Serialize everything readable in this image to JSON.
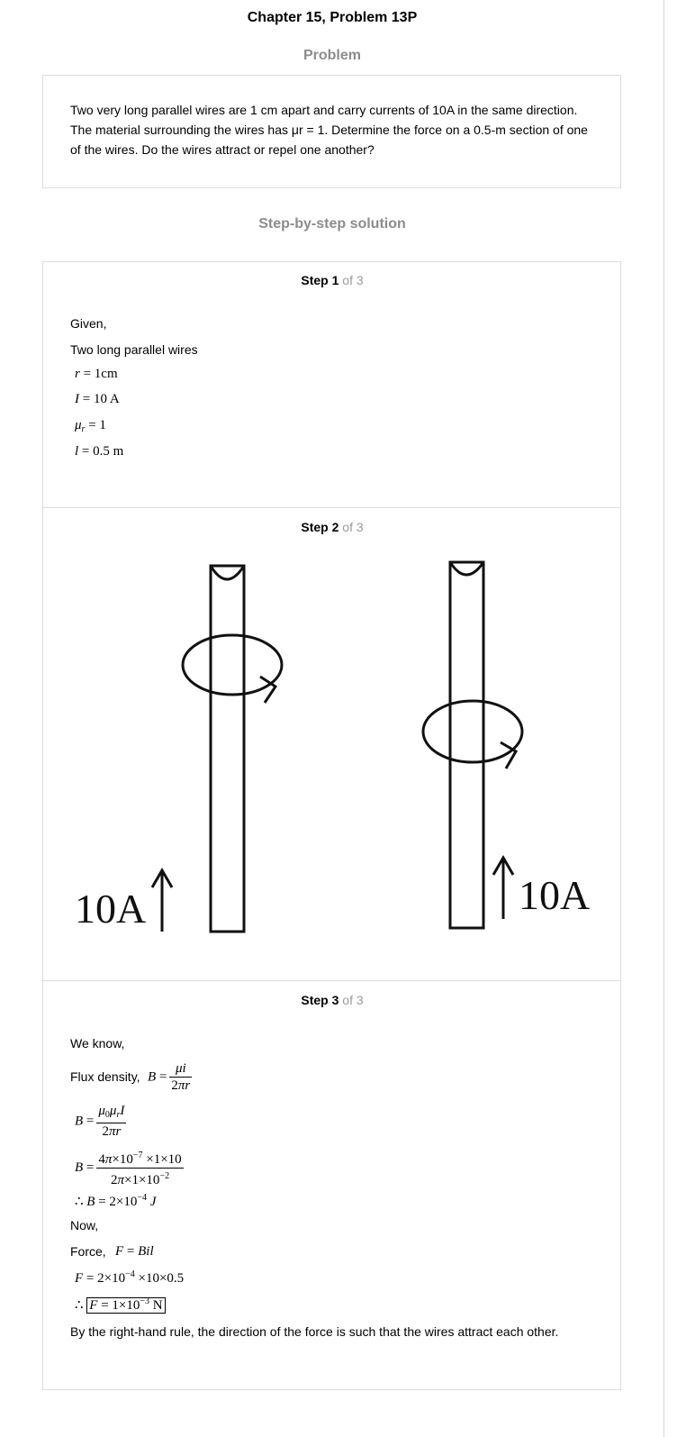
{
  "title": "Chapter 15, Problem 13P",
  "problem": {
    "heading": "Problem",
    "text": "Two very long parallel wires are 1 cm apart and carry currents of 10A in the same direction. The material surrounding the wires has μr = 1. Determine the force on a 0.5-m section of one of the wires. Do the wires attract or repel one another?"
  },
  "solution": {
    "heading": "Step-by-step solution",
    "step_word": "Step",
    "of_total": "of 3",
    "steps": [
      {
        "number": "1",
        "given": "Given,",
        "intro": "Two long parallel wires",
        "eq_r": "r = 1cm",
        "eq_I": "I = 10 A",
        "eq_mu": "μr = 1",
        "eq_l": "l = 0.5 m"
      },
      {
        "number": "2",
        "figure": {
          "left_current_label": "10A",
          "right_current_label": "10A"
        }
      },
      {
        "number": "3",
        "we_know": "We know,",
        "flux_label": "Flux density,",
        "flux_formula": "B = μi / 2πr",
        "b_formula_2": "B = μ0μrI / 2πr",
        "b_formula_3": "B = 4π×10^-7 ×1×10 / 2π×1×10^-2",
        "b_result": "∴ B = 2×10^-4 J",
        "now": "Now,",
        "force_label": "Force,",
        "force_formula": "F = Bil",
        "force_calc": "F = 2×10^-4 ×10×0.5",
        "force_result": "∴ F = 1×10^-3 N",
        "conclusion": "By the right-hand rule, the direction of the force is such that the wires attract each other."
      }
    ]
  }
}
